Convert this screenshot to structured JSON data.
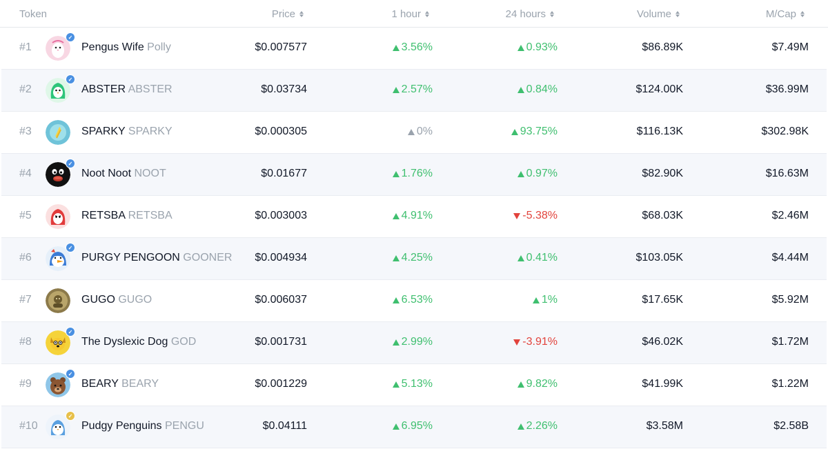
{
  "header": {
    "token": "Token",
    "price": "Price",
    "hour1": "1 hour",
    "hours24": "24 hours",
    "volume": "Volume",
    "mcap": "M/Cap"
  },
  "colors": {
    "up": "#3fbf6f",
    "down": "#e2433c",
    "flat": "#9aa3ad",
    "verified_blue": "#4a90e2",
    "verified_gold": "#e7c04a"
  },
  "rows": [
    {
      "rank": "#1",
      "name": "Pengus Wife",
      "symbol": "Polly",
      "price": "$0.007577",
      "h1": "3.56%",
      "h1_dir": "up",
      "h24": "0.93%",
      "h24_dir": "up",
      "volume": "$86.89K",
      "mcap": "$7.49M",
      "verified": "blue",
      "icon": "pengus-wife-avatar-icon"
    },
    {
      "rank": "#2",
      "name": "ABSTER",
      "symbol": "ABSTER",
      "price": "$0.03734",
      "h1": "2.57%",
      "h1_dir": "up",
      "h24": "0.84%",
      "h24_dir": "up",
      "volume": "$124.00K",
      "mcap": "$36.99M",
      "verified": "blue",
      "icon": "abster-avatar-icon"
    },
    {
      "rank": "#3",
      "name": "SPARKY",
      "symbol": "SPARKY",
      "price": "$0.000305",
      "h1": "0%",
      "h1_dir": "flat",
      "h24": "93.75%",
      "h24_dir": "up",
      "volume": "$116.13K",
      "mcap": "$302.98K",
      "verified": "none",
      "icon": "sparky-avatar-icon"
    },
    {
      "rank": "#4",
      "name": "Noot Noot",
      "symbol": "NOOT",
      "price": "$0.01677",
      "h1": "1.76%",
      "h1_dir": "up",
      "h24": "0.97%",
      "h24_dir": "up",
      "volume": "$82.90K",
      "mcap": "$16.63M",
      "verified": "blue",
      "icon": "noot-avatar-icon"
    },
    {
      "rank": "#5",
      "name": "RETSBA",
      "symbol": "RETSBA",
      "price": "$0.003003",
      "h1": "4.91%",
      "h1_dir": "up",
      "h24": "-5.38%",
      "h24_dir": "down",
      "volume": "$68.03K",
      "mcap": "$2.46M",
      "verified": "none",
      "icon": "retsba-avatar-icon"
    },
    {
      "rank": "#6",
      "name": "PURGY PENGOON",
      "symbol": "GOONER",
      "price": "$0.004934",
      "h1": "4.25%",
      "h1_dir": "up",
      "h24": "0.41%",
      "h24_dir": "up",
      "volume": "$103.05K",
      "mcap": "$4.44M",
      "verified": "blue",
      "icon": "purgy-pengoon-avatar-icon"
    },
    {
      "rank": "#7",
      "name": "GUGO",
      "symbol": "GUGO",
      "price": "$0.006037",
      "h1": "6.53%",
      "h1_dir": "up",
      "h24": "1%",
      "h24_dir": "up",
      "volume": "$17.65K",
      "mcap": "$5.92M",
      "verified": "none",
      "icon": "gugo-avatar-icon"
    },
    {
      "rank": "#8",
      "name": "The Dyslexic Dog",
      "symbol": "GOD",
      "price": "$0.001731",
      "h1": "2.99%",
      "h1_dir": "up",
      "h24": "-3.91%",
      "h24_dir": "down",
      "volume": "$46.02K",
      "mcap": "$1.72M",
      "verified": "blue",
      "icon": "dyslexic-dog-avatar-icon"
    },
    {
      "rank": "#9",
      "name": "BEARY",
      "symbol": "BEARY",
      "price": "$0.001229",
      "h1": "5.13%",
      "h1_dir": "up",
      "h24": "9.82%",
      "h24_dir": "up",
      "volume": "$41.99K",
      "mcap": "$1.22M",
      "verified": "blue",
      "icon": "beary-avatar-icon"
    },
    {
      "rank": "#10",
      "name": "Pudgy Penguins",
      "symbol": "PENGU",
      "price": "$0.04111",
      "h1": "6.95%",
      "h1_dir": "up",
      "h24": "2.26%",
      "h24_dir": "up",
      "volume": "$3.58M",
      "mcap": "$2.58B",
      "verified": "gold",
      "icon": "pudgy-penguins-avatar-icon"
    }
  ]
}
